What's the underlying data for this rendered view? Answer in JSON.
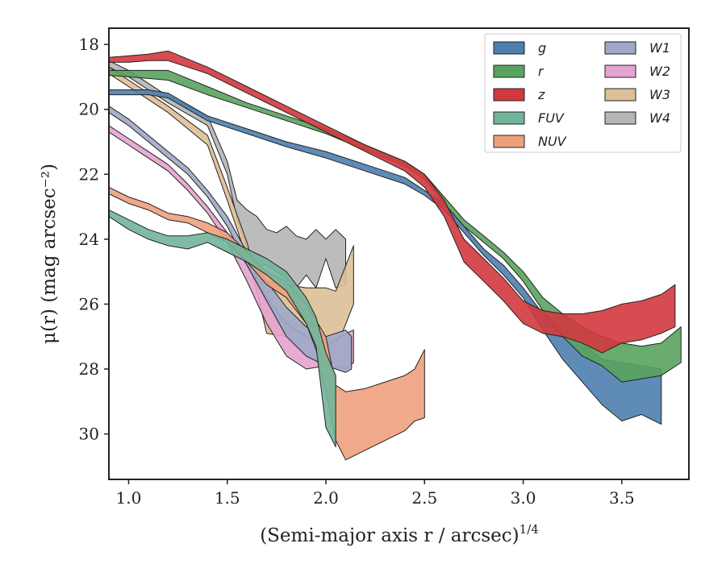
{
  "chart_data": {
    "type": "area",
    "xlabel": "(Semi-major axis r / arcsec)",
    "xlabel_exponent": "1/4",
    "ylabel": "μ(r) (mag arcsec⁻²)",
    "xlim": [
      0.9,
      3.84
    ],
    "ylim": [
      31.4,
      17.5
    ],
    "y_inverted": true,
    "x_ticks": [
      1.0,
      1.5,
      2.0,
      2.5,
      3.0,
      3.5
    ],
    "x_tick_labels": [
      "1.0",
      "1.5",
      "2.0",
      "2.5",
      "3.0",
      "3.5"
    ],
    "y_ticks": [
      18,
      20,
      22,
      24,
      26,
      28,
      30
    ],
    "y_tick_labels": [
      "18",
      "20",
      "22",
      "24",
      "26",
      "28",
      "30"
    ],
    "grid": false,
    "legend": {
      "placement": "top-right",
      "columns": 2
    },
    "series": [
      {
        "name": "W4",
        "color": "#b5b5b5",
        "x": [
          0.9,
          1.0,
          1.2,
          1.4,
          1.5,
          1.55,
          1.6,
          1.65,
          1.7,
          1.75,
          1.8,
          1.85,
          1.9,
          1.95,
          2.0,
          2.05,
          2.1
        ],
        "y": [
          18.5,
          18.8,
          19.6,
          20.2,
          21.6,
          22.8,
          23.1,
          23.3,
          23.7,
          23.8,
          23.6,
          23.9,
          24.0,
          23.7,
          24.0,
          23.7,
          24.0
        ],
        "y2": [
          18.7,
          19.0,
          19.8,
          20.5,
          22.0,
          23.4,
          24.3,
          24.8,
          24.8,
          25.0,
          25.2,
          25.5,
          25.1,
          25.5,
          24.6,
          25.5,
          25.4
        ]
      },
      {
        "name": "W3",
        "color": "#ddbf97",
        "x": [
          0.9,
          1.0,
          1.2,
          1.4,
          1.5,
          1.6,
          1.65,
          1.7,
          1.8,
          1.9,
          2.0,
          2.05,
          2.14
        ],
        "y": [
          18.7,
          19.1,
          19.9,
          20.8,
          22.4,
          24.1,
          25.2,
          25.3,
          25.4,
          25.5,
          25.5,
          25.6,
          24.2
        ],
        "y2": [
          18.9,
          19.3,
          20.1,
          21.1,
          22.8,
          24.6,
          25.6,
          26.9,
          27.0,
          27.1,
          27.3,
          27.4,
          26.0
        ]
      },
      {
        "name": "W2",
        "color": "#e5a3cf",
        "x": [
          0.9,
          1.0,
          1.1,
          1.2,
          1.3,
          1.4,
          1.5,
          1.6,
          1.7,
          1.8,
          1.9,
          2.0,
          2.1,
          2.14
        ],
        "y": [
          20.5,
          20.9,
          21.3,
          21.7,
          22.3,
          23.0,
          23.8,
          24.8,
          25.8,
          26.6,
          27.0,
          27.3,
          26.9,
          26.8
        ],
        "y2": [
          20.7,
          21.1,
          21.5,
          21.9,
          22.5,
          23.2,
          24.1,
          25.3,
          26.6,
          27.6,
          28.0,
          27.9,
          28.0,
          27.8
        ]
      },
      {
        "name": "W1",
        "color": "#9ea8c8",
        "x": [
          0.9,
          1.0,
          1.1,
          1.2,
          1.3,
          1.4,
          1.5,
          1.6,
          1.7,
          1.8,
          1.9,
          2.0,
          2.1,
          2.13
        ],
        "y": [
          19.9,
          20.3,
          20.8,
          21.3,
          21.8,
          22.5,
          23.3,
          24.4,
          25.3,
          26.1,
          26.7,
          27.0,
          26.8,
          27.0
        ],
        "y2": [
          20.1,
          20.5,
          21.0,
          21.5,
          22.0,
          22.7,
          23.6,
          24.8,
          25.9,
          27.0,
          27.6,
          27.9,
          28.1,
          28.0
        ]
      },
      {
        "name": "g",
        "color": "#4c7fae",
        "x": [
          0.9,
          1.0,
          1.1,
          1.2,
          1.4,
          1.6,
          1.8,
          2.0,
          2.2,
          2.4,
          2.5,
          2.6,
          2.7,
          2.8,
          2.9,
          3.0,
          3.1,
          3.2,
          3.3,
          3.4,
          3.5,
          3.6,
          3.7
        ],
        "y": [
          19.4,
          19.4,
          19.4,
          19.5,
          20.2,
          20.6,
          21.0,
          21.3,
          21.7,
          22.1,
          22.5,
          22.9,
          23.6,
          24.3,
          24.8,
          25.5,
          26.3,
          26.8,
          27.2,
          27.7,
          27.8,
          27.9,
          28.0
        ],
        "y2": [
          19.55,
          19.55,
          19.55,
          19.65,
          20.35,
          20.75,
          21.15,
          21.5,
          21.9,
          22.3,
          22.65,
          23.1,
          23.8,
          24.5,
          25.1,
          25.8,
          26.8,
          27.7,
          28.4,
          29.1,
          29.6,
          29.4,
          29.7
        ]
      },
      {
        "name": "r",
        "color": "#5aa35e",
        "x": [
          0.9,
          1.0,
          1.1,
          1.2,
          1.4,
          1.6,
          1.8,
          2.0,
          2.2,
          2.4,
          2.5,
          2.6,
          2.7,
          2.8,
          2.9,
          3.0,
          3.1,
          3.2,
          3.3,
          3.4,
          3.5,
          3.6,
          3.7,
          3.8
        ],
        "y": [
          18.8,
          18.8,
          18.8,
          18.8,
          19.3,
          19.8,
          20.2,
          20.6,
          21.1,
          21.6,
          22.0,
          22.7,
          23.4,
          23.9,
          24.4,
          25.0,
          25.8,
          26.3,
          26.7,
          27.0,
          27.2,
          27.3,
          27.2,
          26.7
        ],
        "y2": [
          18.95,
          19.0,
          19.05,
          19.1,
          19.55,
          19.95,
          20.35,
          20.75,
          21.25,
          21.75,
          22.15,
          22.9,
          23.6,
          24.1,
          24.6,
          25.3,
          26.2,
          27.0,
          27.6,
          27.9,
          28.4,
          28.3,
          28.2,
          27.8
        ]
      },
      {
        "name": "z",
        "color": "#d1393d",
        "x": [
          0.9,
          1.0,
          1.1,
          1.2,
          1.4,
          1.6,
          1.8,
          2.0,
          2.2,
          2.4,
          2.5,
          2.6,
          2.7,
          2.8,
          2.9,
          3.0,
          3.1,
          3.2,
          3.3,
          3.4,
          3.5,
          3.6,
          3.7,
          3.77
        ],
        "y": [
          18.4,
          18.35,
          18.3,
          18.2,
          18.7,
          19.3,
          19.9,
          20.5,
          21.1,
          21.6,
          22.0,
          22.8,
          24.0,
          24.6,
          25.2,
          25.9,
          26.2,
          26.3,
          26.3,
          26.2,
          26.0,
          25.9,
          25.7,
          25.4
        ],
        "y2": [
          18.55,
          18.55,
          18.5,
          18.5,
          18.9,
          19.5,
          20.1,
          20.7,
          21.3,
          21.9,
          22.4,
          23.3,
          24.7,
          25.3,
          25.9,
          26.6,
          26.9,
          27.0,
          27.2,
          27.5,
          27.2,
          27.1,
          26.9,
          26.7
        ]
      },
      {
        "name": "NUV",
        "color": "#eea07d",
        "x": [
          0.9,
          1.0,
          1.1,
          1.2,
          1.3,
          1.4,
          1.5,
          1.6,
          1.7,
          1.8,
          1.9,
          1.95,
          2.0,
          2.05,
          2.1,
          2.2,
          2.3,
          2.4,
          2.45,
          2.5
        ],
        "y": [
          22.4,
          22.7,
          22.9,
          23.2,
          23.3,
          23.5,
          23.8,
          24.4,
          25.0,
          25.3,
          26.0,
          26.5,
          27.0,
          28.5,
          28.7,
          28.6,
          28.4,
          28.2,
          28.0,
          27.4
        ],
        "y2": [
          22.6,
          22.9,
          23.1,
          23.4,
          23.5,
          23.8,
          24.1,
          24.7,
          25.4,
          25.8,
          26.6,
          27.4,
          28.7,
          30.2,
          30.8,
          30.5,
          30.2,
          29.9,
          29.6,
          29.5
        ]
      },
      {
        "name": "FUV",
        "color": "#72b59a",
        "x": [
          0.9,
          1.0,
          1.1,
          1.2,
          1.3,
          1.4,
          1.5,
          1.6,
          1.7,
          1.8,
          1.9,
          1.95,
          2.0,
          2.05
        ],
        "y": [
          23.1,
          23.4,
          23.7,
          23.9,
          23.9,
          23.8,
          24.0,
          24.3,
          24.6,
          25.0,
          25.8,
          26.4,
          27.5,
          28.2
        ],
        "y2": [
          23.3,
          23.7,
          24.0,
          24.2,
          24.3,
          24.1,
          24.4,
          24.7,
          25.1,
          25.6,
          26.6,
          27.3,
          29.8,
          30.4
        ]
      }
    ]
  },
  "legend_items": [
    {
      "name": "g",
      "color": "#4c7fae"
    },
    {
      "name": "r",
      "color": "#5aa35e"
    },
    {
      "name": "z",
      "color": "#d1393d"
    },
    {
      "name": "FUV",
      "color": "#72b59a"
    },
    {
      "name": "NUV",
      "color": "#eea07d"
    },
    {
      "name": "W1",
      "color": "#9ea8c8"
    },
    {
      "name": "W2",
      "color": "#e5a3cf"
    },
    {
      "name": "W3",
      "color": "#ddbf97"
    },
    {
      "name": "W4",
      "color": "#b5b5b5"
    }
  ]
}
